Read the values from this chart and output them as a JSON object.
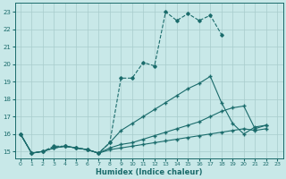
{
  "xlabel": "Humidex (Indice chaleur)",
  "ylabel": "",
  "background_color": "#c8e8e8",
  "grid_color": "#a8cccc",
  "line_color": "#1a6b6b",
  "xlim": [
    -0.5,
    23.5
  ],
  "ylim": [
    14.6,
    23.5
  ],
  "yticks": [
    15,
    16,
    17,
    18,
    19,
    20,
    21,
    22,
    23
  ],
  "xticks": [
    0,
    1,
    2,
    3,
    4,
    5,
    6,
    7,
    8,
    9,
    10,
    11,
    12,
    13,
    14,
    15,
    16,
    17,
    18,
    19,
    20,
    21,
    22,
    23
  ],
  "line1_x": [
    0,
    1,
    2,
    3,
    4,
    5,
    6,
    7,
    8,
    9,
    10,
    11,
    12,
    13,
    14,
    15,
    16,
    17,
    18
  ],
  "line1_y": [
    16.0,
    14.9,
    15.0,
    15.3,
    15.3,
    15.2,
    15.1,
    14.9,
    15.5,
    19.2,
    19.2,
    20.1,
    19.9,
    23.0,
    22.5,
    22.9,
    22.5,
    22.8,
    21.7
  ],
  "line2_x": [
    0,
    1,
    2,
    3,
    4,
    5,
    6,
    7,
    8,
    9,
    10,
    11,
    12,
    13,
    14,
    15,
    16,
    17,
    18,
    19,
    20,
    21,
    22
  ],
  "line2_y": [
    16.0,
    14.9,
    15.0,
    15.2,
    15.3,
    15.2,
    15.1,
    14.9,
    15.5,
    16.2,
    16.6,
    17.0,
    17.4,
    17.8,
    18.2,
    18.6,
    18.9,
    19.3,
    17.8,
    16.6,
    16.0,
    16.4,
    16.5
  ],
  "line3_x": [
    0,
    1,
    2,
    3,
    4,
    5,
    6,
    7,
    8,
    9,
    10,
    11,
    12,
    13,
    14,
    15,
    16,
    17,
    18,
    19,
    20,
    21,
    22
  ],
  "line3_y": [
    16.0,
    14.9,
    15.0,
    15.2,
    15.3,
    15.2,
    15.1,
    14.9,
    15.2,
    15.4,
    15.5,
    15.7,
    15.9,
    16.1,
    16.3,
    16.5,
    16.7,
    17.0,
    17.3,
    17.5,
    17.6,
    16.3,
    16.5
  ],
  "line4_x": [
    0,
    1,
    2,
    3,
    4,
    5,
    6,
    7,
    8,
    9,
    10,
    11,
    12,
    13,
    14,
    15,
    16,
    17,
    18,
    19,
    20,
    21,
    22
  ],
  "line4_y": [
    16.0,
    14.9,
    15.0,
    15.2,
    15.3,
    15.2,
    15.1,
    14.9,
    15.1,
    15.2,
    15.3,
    15.4,
    15.5,
    15.6,
    15.7,
    15.8,
    15.9,
    16.0,
    16.1,
    16.2,
    16.3,
    16.2,
    16.3
  ]
}
